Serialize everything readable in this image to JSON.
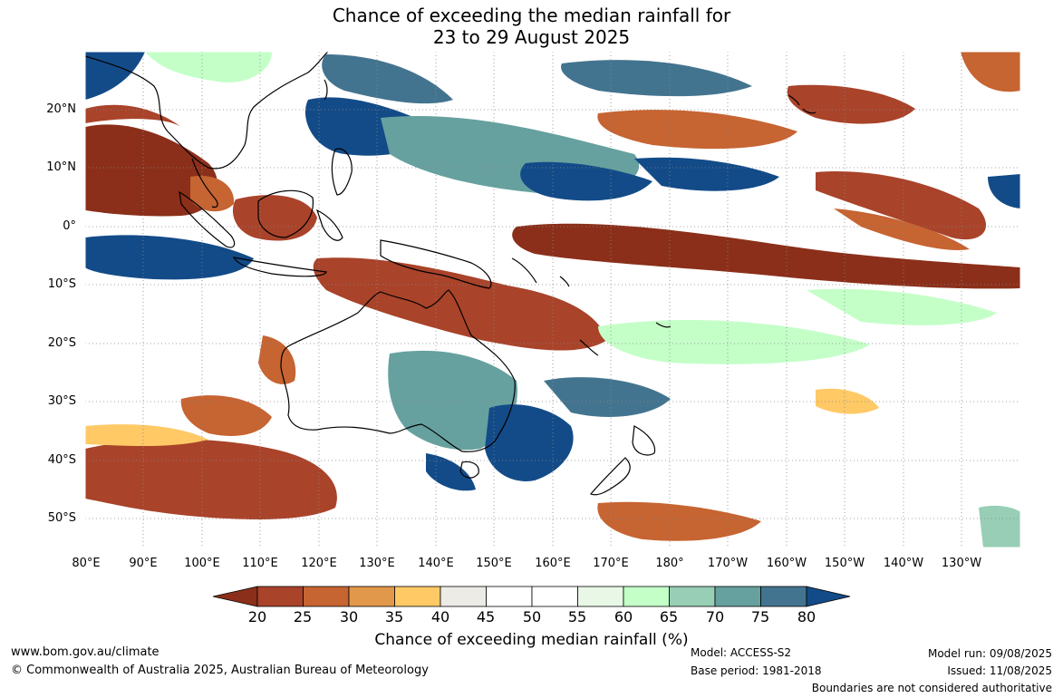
{
  "title": {
    "line1": "Chance of exceeding the median rainfall for",
    "line2": "23 to 29 August 2025"
  },
  "map": {
    "lat_labels": [
      "20°N",
      "10°N",
      "0°",
      "10°S",
      "20°S",
      "30°S",
      "40°S",
      "50°S"
    ],
    "lon_labels": [
      "80°E",
      "90°E",
      "100°E",
      "110°E",
      "120°E",
      "130°E",
      "140°E",
      "150°E",
      "160°E",
      "170°E",
      "180°",
      "170°W",
      "160°W",
      "150°W",
      "140°W",
      "130°W"
    ]
  },
  "colorbar": {
    "labels": [
      "20",
      "25",
      "30",
      "35",
      "40",
      "45",
      "50",
      "55",
      "60",
      "65",
      "70",
      "75",
      "80"
    ],
    "colors": [
      "#8b2f1a",
      "#a9432a",
      "#c66432",
      "#e2984a",
      "#ffc966",
      "#ecebe6",
      "#ffffff",
      "#ffffff",
      "#e8f7e6",
      "#c4ffc8",
      "#97ceb5",
      "#66a19f",
      "#43748f",
      "#134b88"
    ],
    "title": "Chance of exceeding median rainfall (%)"
  },
  "footer": {
    "website": "www.bom.gov.au/climate",
    "copyright": "© Commonwealth of Australia 2025, Australian Bureau of Meteorology",
    "model": "Model: ACCESS-S2",
    "base_period": "Base period: 1981-2018",
    "model_run": "Model run: 09/08/2025",
    "issued": "Issued: 11/08/2025",
    "disclaimer": "Boundaries are not considered authoritative"
  }
}
